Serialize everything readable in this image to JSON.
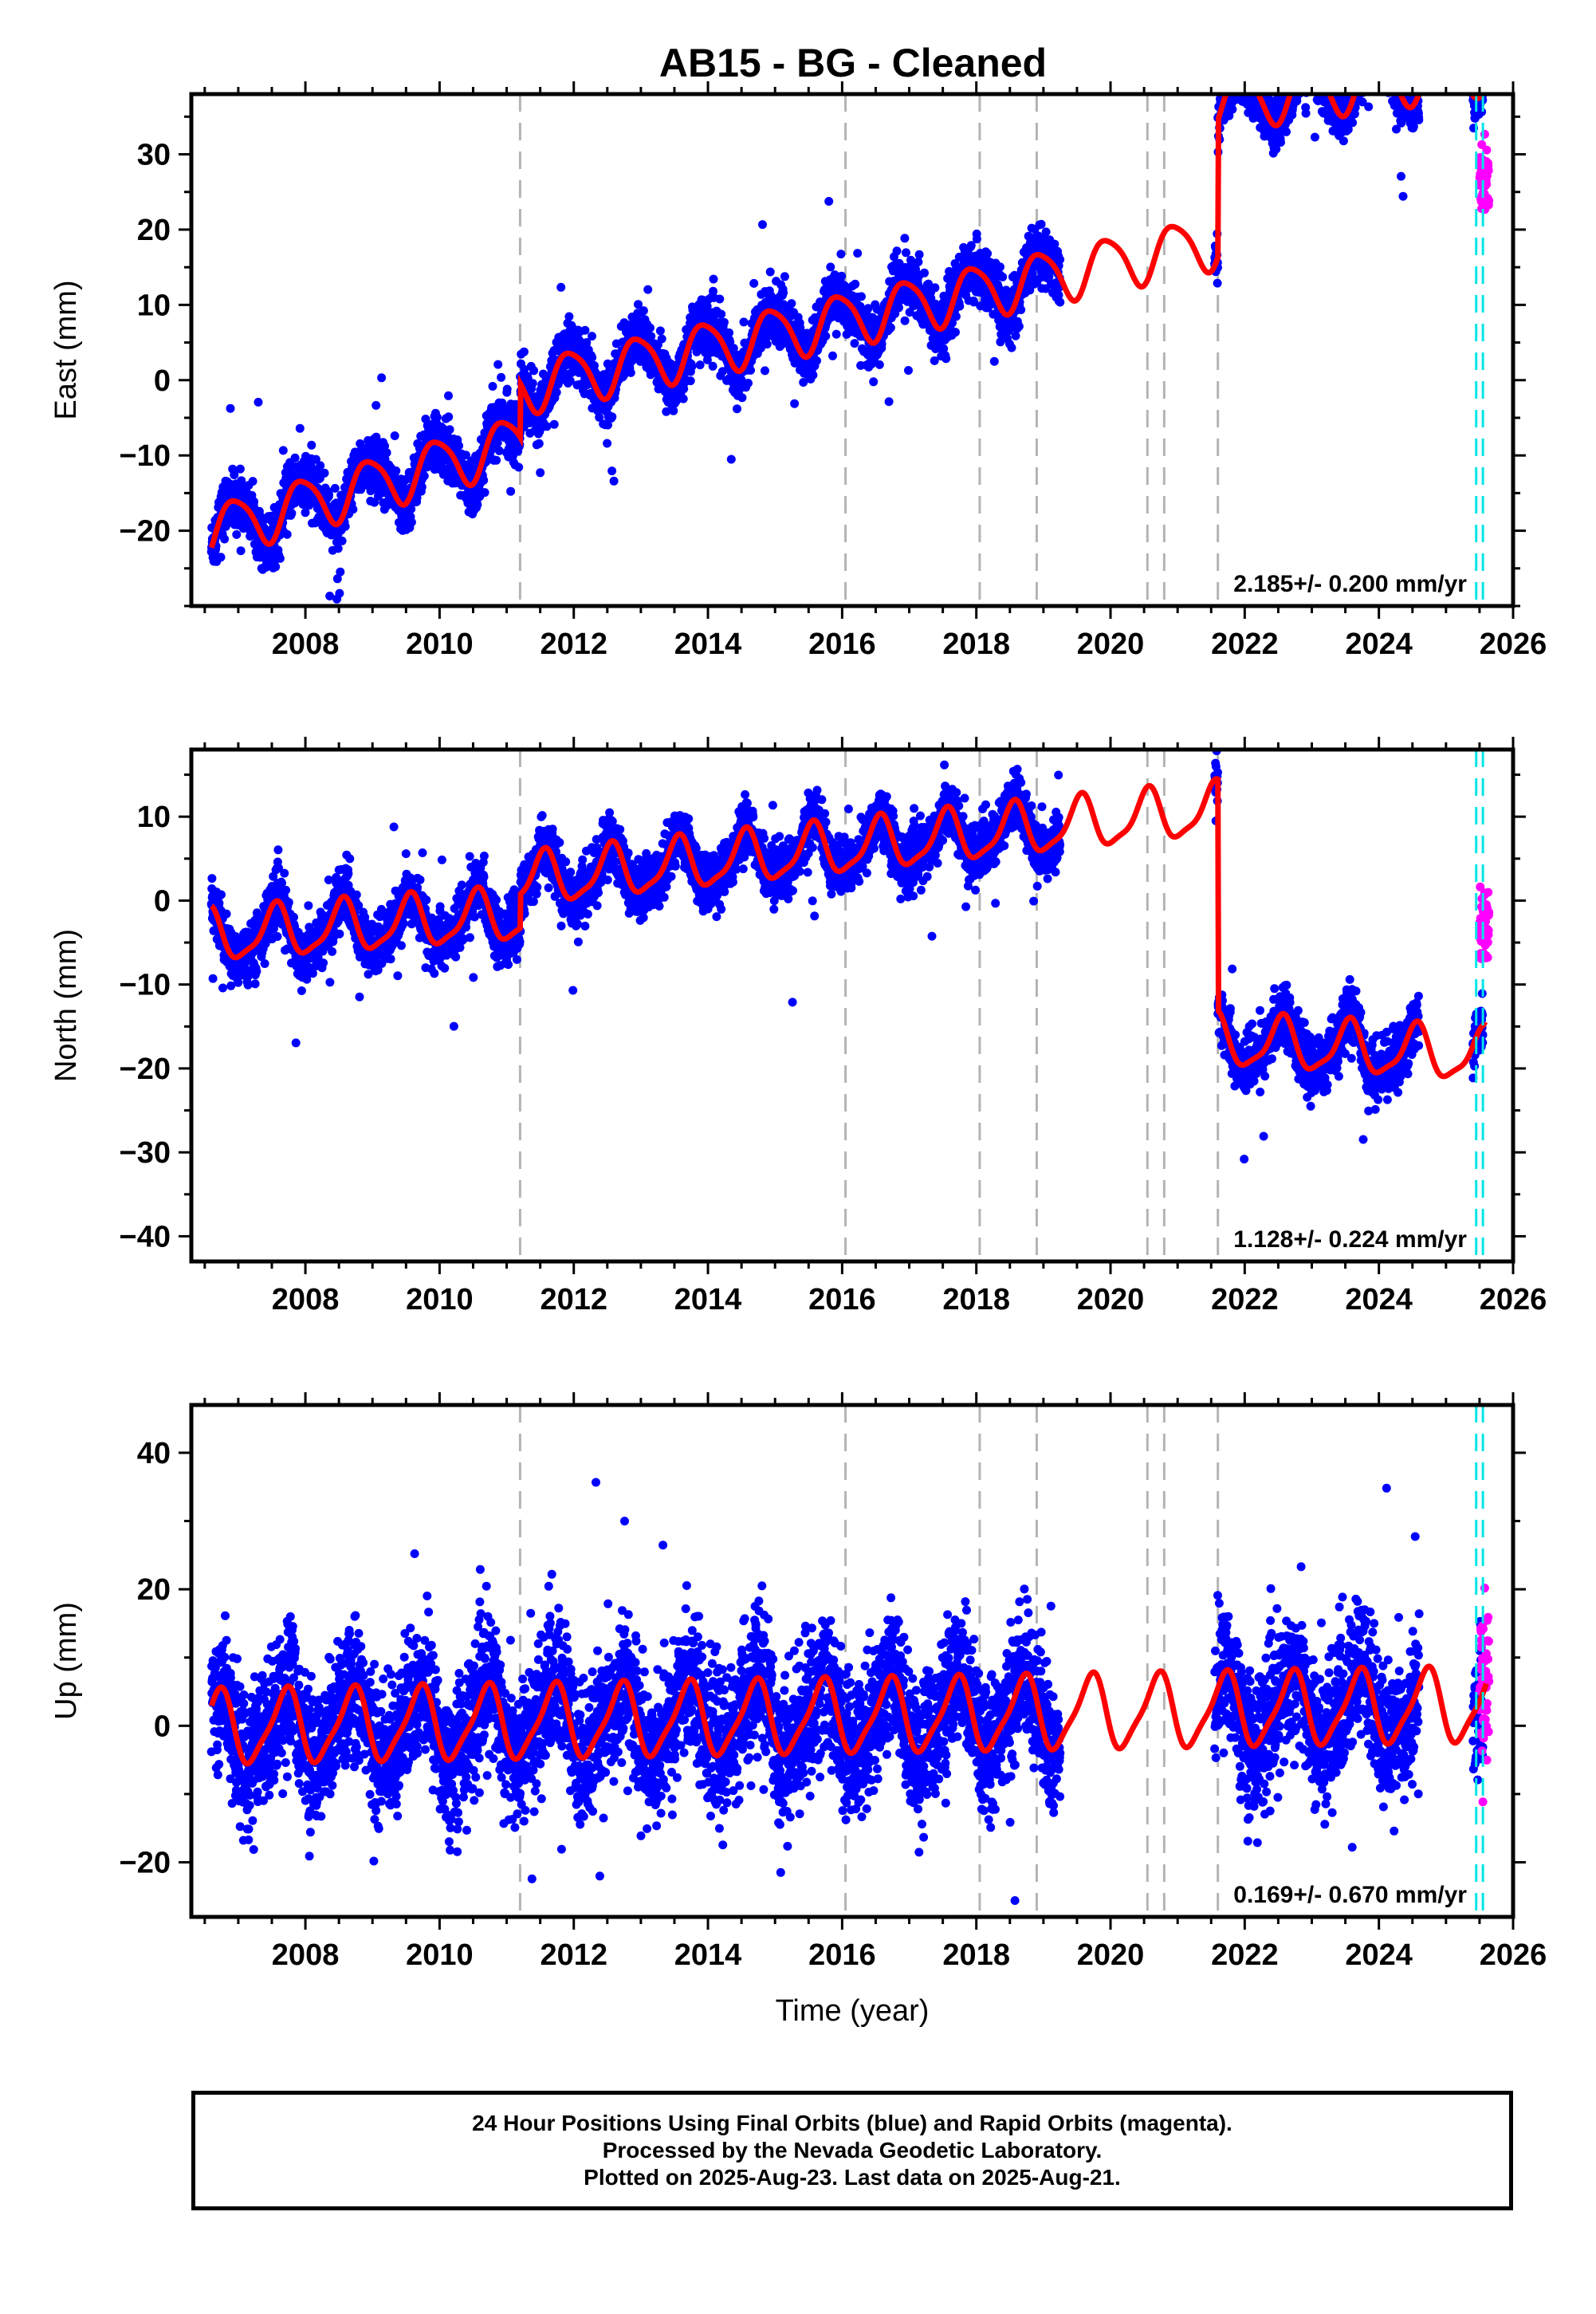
{
  "title": "AB15  - BG - Cleaned",
  "colors": {
    "final_orbits": "#0000ff",
    "rapid_orbits": "#ff00ff",
    "model": "#ff0000",
    "offset_lines": "#b4b4b4",
    "cyan_lines": "#00e5e5"
  },
  "footer": {
    "line1": "24 Hour Positions Using Final Orbits (blue) and Rapid Orbits (magenta).",
    "line2": "Processed by the Nevada Geodetic Laboratory.",
    "line3": "Plotted on 2025-Aug-23. Last data on 2025-Aug-21."
  },
  "chart_data": [
    {
      "type": "scatter",
      "component": "East",
      "ylabel": "East (mm)",
      "xlabel": "",
      "xlim": [
        2006.3,
        2026.0
      ],
      "ylim": [
        -30,
        38
      ],
      "xticks": [
        2008,
        2010,
        2012,
        2014,
        2016,
        2018,
        2020,
        2022,
        2024,
        2026
      ],
      "yticks": [
        -20,
        -10,
        0,
        10,
        20,
        30
      ],
      "rate_label": "2.185+/- 0.200 mm/yr",
      "model": {
        "trend_segments": [
          {
            "from": 2006.6,
            "to": 2011.2,
            "a": -20.0,
            "b": 2.6
          },
          {
            "from": 2011.2,
            "to": 2021.6,
            "a": -9.5,
            "b": 1.87
          },
          {
            "from": 2021.6,
            "to": 2025.6,
            "a": 18.8,
            "b": 1.2
          }
        ],
        "annual_amplitude": 3.5,
        "annual_peak_fraction": 0.95,
        "semiannual_amplitude": 0.6,
        "semiannual_phase_fraction": 0.25
      },
      "final_orbit_data": {
        "from": 2006.6,
        "to": 2025.55,
        "gaps": [
          [
            2019.25,
            2021.55
          ],
          [
            2024.6,
            2025.4
          ]
        ],
        "scatter_sigma": 1.8,
        "outlier_rate": 0.015
      },
      "rapid_orbit_data": {
        "from": 2025.5,
        "to": 2025.64,
        "center": 27,
        "scatter_sigma": 2.0
      },
      "offset_lines": [
        2011.2,
        2016.05,
        2018.05,
        2018.9,
        2020.55,
        2020.8,
        2021.6
      ],
      "cyan_lines": [
        2025.45,
        2025.55
      ]
    },
    {
      "type": "scatter",
      "component": "North",
      "ylabel": "North (mm)",
      "xlabel": "",
      "xlim": [
        2006.3,
        2026.0
      ],
      "ylim": [
        -43,
        18
      ],
      "xticks": [
        2008,
        2010,
        2012,
        2014,
        2016,
        2018,
        2020,
        2022,
        2024,
        2026
      ],
      "yticks": [
        -40,
        -30,
        -20,
        -10,
        0,
        10
      ],
      "rate_label": "1.128+/- 0.224 mm/yr",
      "model": {
        "trend_segments": [
          {
            "from": 2006.6,
            "to": 2011.2,
            "a": -4.3,
            "b": 0.55
          },
          {
            "from": 2011.2,
            "to": 2021.6,
            "a": -1.5,
            "b": 0.82
          },
          {
            "from": 2021.6,
            "to": 2025.6,
            "a": -10.0,
            "b": -0.45
          }
        ],
        "annual_amplitude": 3.0,
        "annual_peak_fraction": 0.55,
        "semiannual_amplitude": 0.8,
        "semiannual_phase_fraction": 0.1
      },
      "final_orbit_data": {
        "from": 2006.6,
        "to": 2025.55,
        "gaps": [
          [
            2019.25,
            2021.55
          ],
          [
            2024.6,
            2025.4
          ]
        ],
        "scatter_sigma": 1.6,
        "outlier_rate": 0.012
      },
      "rapid_orbit_data": {
        "from": 2025.5,
        "to": 2025.64,
        "center": -3,
        "scatter_sigma": 1.8
      },
      "offset_lines": [
        2011.2,
        2016.05,
        2018.05,
        2018.9,
        2020.55,
        2020.8,
        2021.6
      ],
      "cyan_lines": [
        2025.45,
        2025.55
      ]
    },
    {
      "type": "scatter",
      "component": "Up",
      "ylabel": "Up (mm)",
      "xlabel": "Time (year)",
      "xlim": [
        2006.3,
        2026.0
      ],
      "ylim": [
        -28,
        47
      ],
      "xticks": [
        2008,
        2010,
        2012,
        2014,
        2016,
        2018,
        2020,
        2022,
        2024,
        2026
      ],
      "yticks": [
        -20,
        0,
        20,
        40
      ],
      "rate_label": "0.169+/- 0.670 mm/yr",
      "model": {
        "trend_segments": [
          {
            "from": 2006.6,
            "to": 2025.6,
            "a": -0.3,
            "b": 0.17
          }
        ],
        "annual_amplitude": 5.2,
        "annual_peak_fraction": 0.7,
        "semiannual_amplitude": 1.2,
        "semiannual_phase_fraction": 0.3
      },
      "final_orbit_data": {
        "from": 2006.6,
        "to": 2025.55,
        "gaps": [
          [
            2019.25,
            2021.55
          ],
          [
            2024.6,
            2025.4
          ]
        ],
        "scatter_sigma": 5.0,
        "outlier_rate": 0.01
      },
      "rapid_orbit_data": {
        "from": 2025.5,
        "to": 2025.64,
        "center": 6,
        "scatter_sigma": 6.0
      },
      "offset_lines": [
        2011.2,
        2016.05,
        2018.05,
        2018.9,
        2020.55,
        2020.8,
        2021.6
      ],
      "cyan_lines": [
        2025.45,
        2025.55
      ]
    }
  ]
}
